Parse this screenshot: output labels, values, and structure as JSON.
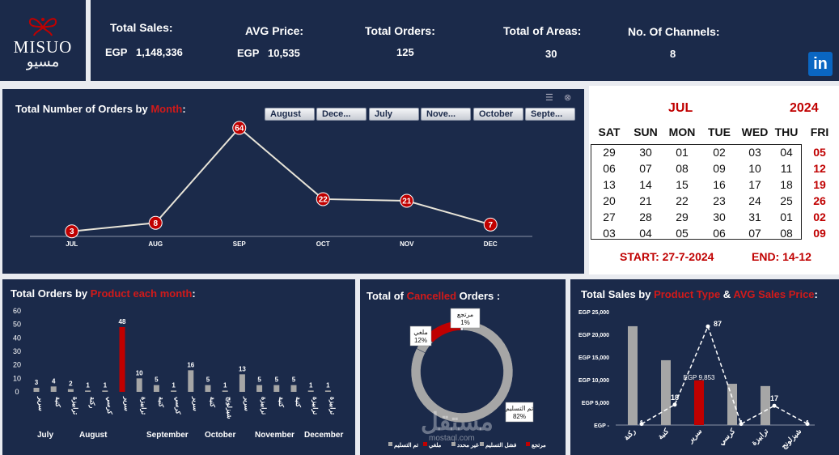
{
  "brand": {
    "latin": "MISUO",
    "arabic": "مسيو"
  },
  "kpis": [
    {
      "label": "Total Sales:",
      "value": "EGP   1,148,336"
    },
    {
      "label": "AVG Price:",
      "value": "EGP   10,535"
    },
    {
      "label": "Total Orders:",
      "value": "125"
    },
    {
      "label": "Total of Areas:",
      "value": "30"
    },
    {
      "label": "No. Of Channels:",
      "value": "8"
    }
  ],
  "social": {
    "linkedin": "in"
  },
  "orders_by_month": {
    "title_pre": "Total Number of Orders by ",
    "title_hl": "Month",
    "title_post": ":",
    "slicers": [
      "August",
      "Dece...",
      "July",
      "Nove...",
      "October",
      "Septe..."
    ]
  },
  "calendar": {
    "month": "JUL",
    "year": "2024",
    "days": [
      "SAT",
      "SUN",
      "MON",
      "TUE",
      "WED",
      "THU",
      "FRI"
    ],
    "weeks": [
      [
        "29",
        "30",
        "01",
        "02",
        "03",
        "04",
        "05"
      ],
      [
        "06",
        "07",
        "08",
        "09",
        "10",
        "11",
        "12"
      ],
      [
        "13",
        "14",
        "15",
        "16",
        "17",
        "18",
        "19"
      ],
      [
        "20",
        "21",
        "22",
        "23",
        "24",
        "25",
        "26"
      ],
      [
        "27",
        "28",
        "29",
        "30",
        "31",
        "01",
        "02"
      ],
      [
        "03",
        "04",
        "05",
        "06",
        "07",
        "08",
        "09"
      ]
    ],
    "start": "START:  27-7-2024",
    "end": "END: 14-12"
  },
  "product_month": {
    "title_pre": "Total Orders by ",
    "title_hl": "Product each month",
    "title_post": ":",
    "months": [
      "July",
      "August",
      "September",
      "October",
      "November",
      "December"
    ]
  },
  "cancelled": {
    "title_pre": "Total of ",
    "title_hl": "Cancelled",
    "title_post": " Orders :",
    "watermark": "مستقل",
    "watermark_sub": "mostaql.com",
    "legend": [
      "تم التسليم",
      "ملغي",
      "غير محدد",
      "فشل التسليم",
      "مرتجع"
    ]
  },
  "sales_type": {
    "title_pre": "Total Sales by ",
    "title_hl1": "Product Type",
    "title_mid": " & ",
    "title_hl2": "AVG Sales Price",
    "title_post": ":"
  },
  "chart_data": [
    {
      "type": "line",
      "title": "Total Number of Orders by Month:",
      "categories": [
        "JUL",
        "AUG",
        "SEP",
        "OCT",
        "NOV",
        "DEC"
      ],
      "values": [
        3,
        8,
        64,
        22,
        21,
        7
      ],
      "colors": {
        "line": "#e8e4d8",
        "marker": "#c00000"
      }
    },
    {
      "type": "bar",
      "title": "Total Orders by Product each month:",
      "ylim": [
        0,
        60
      ],
      "yticks": [
        0,
        10,
        20,
        30,
        40,
        50,
        60
      ],
      "groups": [
        {
          "month": "July",
          "bars": [
            {
              "label": "سرير",
              "value": 3
            },
            {
              "label": "كنبة",
              "value": 4
            },
            {
              "label": "ترابيزة",
              "value": 2
            },
            {
              "label": "ركنة",
              "value": 1
            },
            {
              "label": "كرسي",
              "value": 1
            }
          ]
        },
        {
          "month": "August",
          "bars": [
            {
              "label": "سرير",
              "value": 48,
              "highlight": true
            }
          ]
        },
        {
          "month": "September",
          "bars": [
            {
              "label": "ترابيزة",
              "value": 10
            },
            {
              "label": "كنبة",
              "value": 5
            },
            {
              "label": "كرسي",
              "value": 1
            }
          ]
        },
        {
          "month": "October",
          "bars": [
            {
              "label": "سرير",
              "value": 16
            },
            {
              "label": "كنبة",
              "value": 5
            },
            {
              "label": "شيزلونج",
              "value": 1
            }
          ]
        },
        {
          "month": "November",
          "bars": [
            {
              "label": "سرير",
              "value": 13
            },
            {
              "label": "ترابيزة",
              "value": 5
            },
            {
              "label": "كنبة",
              "value": 5
            }
          ]
        },
        {
          "month": "December",
          "bars": [
            {
              "label": "كنبة",
              "value": 5
            },
            {
              "label": "ترابيزة",
              "value": 1
            },
            {
              "label": "ترابيزة",
              "value": 1
            }
          ]
        }
      ],
      "colors": {
        "bar": "#a6a6a6",
        "highlight": "#c00000"
      }
    },
    {
      "type": "pie",
      "title": "Total of Cancelled Orders :",
      "slices": [
        {
          "label": "تم التسليم",
          "value": 82,
          "color": "#a6a6a6",
          "display": "تم التسليم\n82%"
        },
        {
          "label": "مرتجع",
          "value": 1,
          "color": "#ffffff",
          "display": "مرتجع\n1%"
        },
        {
          "label": "ملغي",
          "value": 12,
          "color": "#c00000",
          "display": "ملغي\n12%"
        },
        {
          "label": "غير محدد",
          "value": 5,
          "color": "#a6a6a6",
          "display": ""
        }
      ]
    },
    {
      "type": "bar",
      "title": "Total Sales by Product Type & AVG Sales Price:",
      "categories": [
        "ركنة",
        "كنبة",
        "سرير",
        "كرسي",
        "ترابيزة",
        "شيزلونج"
      ],
      "bar_values": [
        21800,
        14300,
        9853,
        9100,
        8600,
        0
      ],
      "bar_value_label": "EGP 9,853",
      "line_values": [
        1,
        18,
        87,
        1,
        17,
        1
      ],
      "yticks": [
        "EGP -",
        "EGP 5,000",
        "EGP 10,000",
        "EGP 15,000",
        "EGP 20,000",
        "EGP 25,000"
      ],
      "ylim": [
        0,
        25000
      ],
      "colors": {
        "bar": "#a6a6a6",
        "highlight": "#c00000",
        "line": "#ffffff"
      }
    }
  ]
}
